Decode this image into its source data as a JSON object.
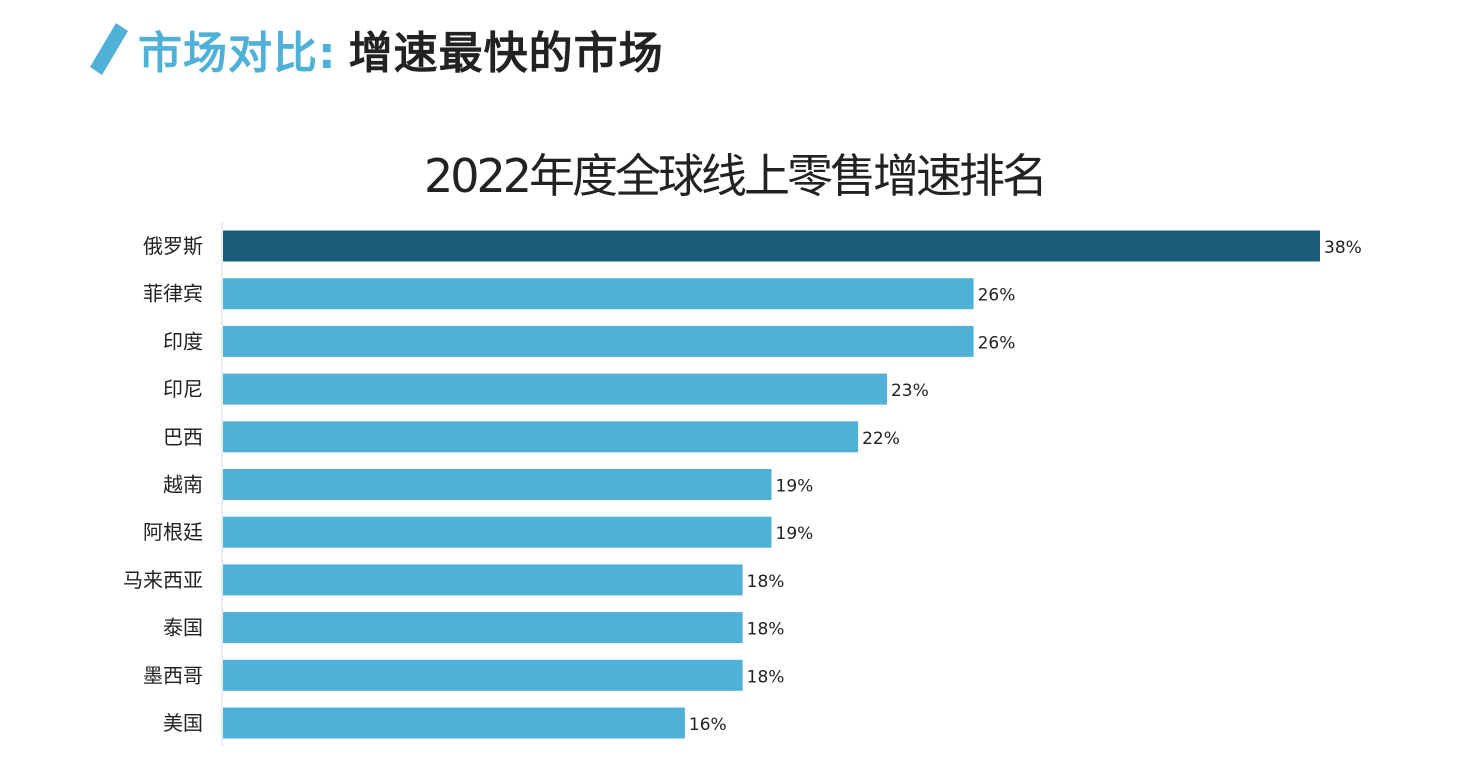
{
  "header": {
    "title_accent": "市场对比:",
    "title_main": "增速最快的市场",
    "accent_color": "#4fb0d8"
  },
  "chart_data": {
    "type": "bar",
    "orientation": "horizontal",
    "title": "2022年度全球线上零售增速排名",
    "categories": [
      "俄罗斯",
      "菲律宾",
      "印度",
      "印尼",
      "巴西",
      "越南",
      "阿根廷",
      "马来西亚",
      "泰国",
      "墨西哥",
      "美国"
    ],
    "values": [
      38,
      26,
      26,
      23,
      22,
      19,
      19,
      18,
      18,
      18,
      16
    ],
    "value_labels": [
      "38%",
      "26%",
      "26%",
      "23%",
      "22%",
      "19%",
      "19%",
      "18%",
      "18%",
      "18%",
      "16%"
    ],
    "unit": "%",
    "xlim": [
      0,
      38
    ],
    "highlight_index": 0,
    "colors": {
      "bar": "#4fb0d8",
      "highlight": "#1b5d78"
    },
    "grid": false,
    "legend": "none"
  }
}
